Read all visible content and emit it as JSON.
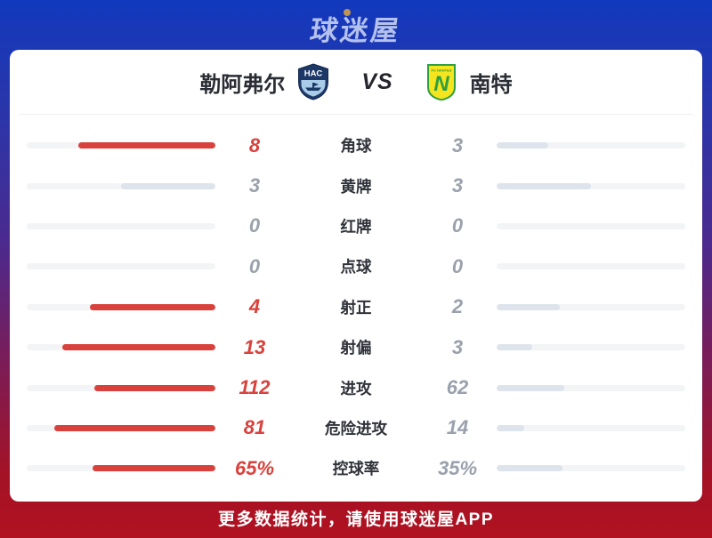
{
  "app": {
    "logo_text": "球迷屋",
    "footer_text": "更多数据统计，请使用球迷屋APP"
  },
  "match_header": {
    "home_team": "勒阿弗尔",
    "home_badge": {
      "icon": "le-havre-crest",
      "initials": "HAC",
      "shield_color": "#1d3866",
      "lower_color": "#a9cce9"
    },
    "vs_label": "VS",
    "away_team": "南特",
    "away_badge": {
      "icon": "nantes-crest",
      "letter": "N",
      "top_text": "FC NANTES",
      "shield_color": "#f4e51e",
      "letter_color": "#2f9e3f"
    }
  },
  "stats": {
    "rows": [
      {
        "label": "角球",
        "home_display": "8",
        "away_display": "3",
        "home_value": 8,
        "away_value": 3
      },
      {
        "label": "黄牌",
        "home_display": "3",
        "away_display": "3",
        "home_value": 3,
        "away_value": 3
      },
      {
        "label": "红牌",
        "home_display": "0",
        "away_display": "0",
        "home_value": 0,
        "away_value": 0
      },
      {
        "label": "点球",
        "home_display": "0",
        "away_display": "0",
        "home_value": 0,
        "away_value": 0
      },
      {
        "label": "射正",
        "home_display": "4",
        "away_display": "2",
        "home_value": 4,
        "away_value": 2
      },
      {
        "label": "射偏",
        "home_display": "13",
        "away_display": "3",
        "home_value": 13,
        "away_value": 3
      },
      {
        "label": "进攻",
        "home_display": "112",
        "away_display": "62",
        "home_value": 112,
        "away_value": 62
      },
      {
        "label": "危险进攻",
        "home_display": "81",
        "away_display": "14",
        "home_value": 81,
        "away_value": 14
      },
      {
        "label": "控球率",
        "home_display": "65%",
        "away_display": "35%",
        "home_value": 65,
        "away_value": 35
      }
    ]
  },
  "colors": {
    "home_lead_fill": "#d9423c",
    "neutral_fill": "#dde4ec",
    "bar_track": "#f3f4f6",
    "value_gray": "#9aa1ad",
    "footer_red": "#b11220",
    "bg_top_blue": "#1139bd"
  }
}
